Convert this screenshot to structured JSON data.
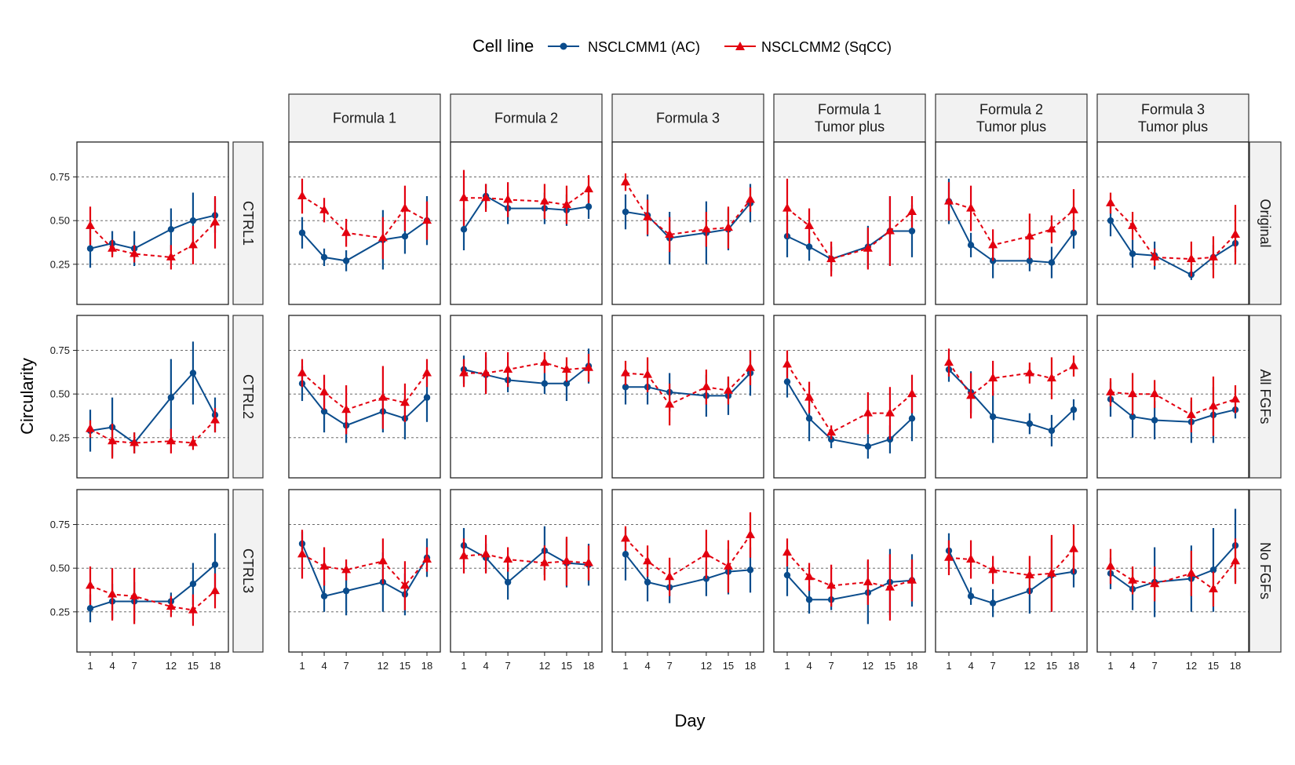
{
  "chart_data": {
    "type": "line",
    "xlabel": "Day",
    "ylabel": "Circularity",
    "x": [
      1,
      4,
      7,
      12,
      15,
      18
    ],
    "x_ticks": [
      "1",
      "4",
      "7",
      "12",
      "15",
      "18"
    ],
    "ylim": [
      0.02,
      0.95
    ],
    "y_ticks": [
      "0.25",
      "0.50",
      "0.75"
    ],
    "y_tick_values": [
      0.25,
      0.5,
      0.75
    ],
    "grid": "horizontal dashed at y ticks",
    "legend": {
      "title": "Cell line",
      "position": "top",
      "items": [
        {
          "label": "NSCLCMM1 (AC)",
          "color": "#0a4c8c",
          "marker": "circle",
          "line": "solid"
        },
        {
          "label": "NSCLCMM2 (SqCC)",
          "color": "#e3000f",
          "marker": "triangle",
          "line": "dashed"
        }
      ]
    },
    "column_strips": [
      "Formula 1",
      "Formula 2",
      "Formula 3",
      "Formula 1\nTumor plus",
      "Formula 2\nTumor plus",
      "Formula 3\nTumor plus"
    ],
    "row_strips": [
      "Original",
      "All FGFs",
      "No FGFs"
    ],
    "control_strips": [
      "CTRL1",
      "CTRL2",
      "CTRL3"
    ],
    "panels": [
      {
        "row": 0,
        "col": "ctrl",
        "strip": "CTRL1",
        "ac": [
          0.34,
          0.37,
          0.34,
          0.45,
          0.5,
          0.53
        ],
        "ac_err": [
          0.11,
          0.07,
          0.1,
          0.12,
          0.16,
          0.1
        ],
        "sq": [
          0.47,
          0.34,
          0.31,
          0.29,
          0.36,
          0.49
        ],
        "sq_err": [
          0.11,
          0.05,
          0.05,
          0.07,
          0.11,
          0.15
        ]
      },
      {
        "row": 0,
        "col": 0,
        "ac": [
          0.43,
          0.29,
          0.27,
          0.39,
          0.41,
          0.5
        ],
        "ac_err": [
          0.09,
          0.05,
          0.06,
          0.17,
          0.1,
          0.14
        ],
        "sq": [
          0.64,
          0.56,
          0.43,
          0.4,
          0.57,
          0.5
        ],
        "sq_err": [
          0.1,
          0.07,
          0.08,
          0.12,
          0.13,
          0.11
        ]
      },
      {
        "row": 0,
        "col": 1,
        "ac": [
          0.45,
          0.64,
          0.57,
          0.57,
          0.56,
          0.58
        ],
        "ac_err": [
          0.12,
          0.07,
          0.09,
          0.09,
          0.09,
          0.07
        ],
        "sq": [
          0.63,
          0.63,
          0.62,
          0.61,
          0.59,
          0.68
        ],
        "sq_err": [
          0.16,
          0.08,
          0.1,
          0.1,
          0.11,
          0.08
        ]
      },
      {
        "row": 0,
        "col": 2,
        "ac": [
          0.55,
          0.53,
          0.4,
          0.43,
          0.45,
          0.6
        ],
        "ac_err": [
          0.1,
          0.12,
          0.15,
          0.18,
          0.12,
          0.11
        ],
        "sq": [
          0.72,
          0.52,
          0.42,
          0.45,
          0.46,
          0.62
        ],
        "sq_err": [
          0.05,
          0.1,
          0.1,
          0.1,
          0.12,
          0.07
        ]
      },
      {
        "row": 0,
        "col": 3,
        "ac": [
          0.41,
          0.35,
          0.28,
          0.35,
          0.44,
          0.44
        ],
        "ac_err": [
          0.12,
          0.08,
          0.07,
          0.12,
          0.2,
          0.15
        ],
        "sq": [
          0.57,
          0.47,
          0.28,
          0.34,
          0.44,
          0.55
        ],
        "sq_err": [
          0.17,
          0.1,
          0.1,
          0.12,
          0.2,
          0.09
        ]
      },
      {
        "row": 0,
        "col": 4,
        "ac": [
          0.61,
          0.36,
          0.27,
          0.27,
          0.26,
          0.43
        ],
        "ac_err": [
          0.13,
          0.07,
          0.1,
          0.06,
          0.09,
          0.09
        ],
        "sq": [
          0.61,
          0.57,
          0.36,
          0.41,
          0.45,
          0.56
        ],
        "sq_err": [
          0.11,
          0.13,
          0.09,
          0.13,
          0.08,
          0.12
        ]
      },
      {
        "row": 0,
        "col": 5,
        "ac": [
          0.5,
          0.31,
          0.3,
          0.19,
          0.29,
          0.37
        ],
        "ac_err": [
          0.09,
          0.08,
          0.08,
          0.03,
          0.07,
          0.05
        ],
        "sq": [
          0.6,
          0.47,
          0.29,
          0.28,
          0.29,
          0.42
        ],
        "sq_err": [
          0.06,
          0.08,
          0.05,
          0.1,
          0.12,
          0.17
        ]
      },
      {
        "row": 1,
        "col": "ctrl",
        "strip": "CTRL2",
        "ac": [
          0.29,
          0.31,
          0.22,
          0.48,
          0.62,
          0.38
        ],
        "ac_err": [
          0.12,
          0.17,
          0.06,
          0.22,
          0.18,
          0.1
        ],
        "sq": [
          0.3,
          0.23,
          0.22,
          0.23,
          0.22,
          0.35
        ],
        "sq_err": [
          0.05,
          0.1,
          0.06,
          0.07,
          0.04,
          0.07
        ]
      },
      {
        "row": 1,
        "col": 0,
        "ac": [
          0.56,
          0.4,
          0.32,
          0.4,
          0.36,
          0.48
        ],
        "ac_err": [
          0.1,
          0.12,
          0.1,
          0.12,
          0.12,
          0.14
        ],
        "sq": [
          0.62,
          0.51,
          0.41,
          0.48,
          0.45,
          0.62
        ],
        "sq_err": [
          0.08,
          0.1,
          0.14,
          0.18,
          0.11,
          0.08
        ]
      },
      {
        "row": 1,
        "col": 1,
        "ac": [
          0.64,
          0.61,
          0.58,
          0.56,
          0.56,
          0.66
        ],
        "ac_err": [
          0.08,
          0.1,
          0.07,
          0.06,
          0.1,
          0.1
        ],
        "sq": [
          0.62,
          0.62,
          0.64,
          0.68,
          0.64,
          0.65
        ],
        "sq_err": [
          0.08,
          0.12,
          0.1,
          0.06,
          0.07,
          0.08
        ]
      },
      {
        "row": 1,
        "col": 2,
        "ac": [
          0.54,
          0.54,
          0.51,
          0.49,
          0.49,
          0.62
        ],
        "ac_err": [
          0.1,
          0.1,
          0.11,
          0.12,
          0.11,
          0.13
        ],
        "sq": [
          0.62,
          0.61,
          0.44,
          0.54,
          0.52,
          0.65
        ],
        "sq_err": [
          0.07,
          0.1,
          0.12,
          0.1,
          0.08,
          0.1
        ]
      },
      {
        "row": 1,
        "col": 3,
        "ac": [
          0.57,
          0.36,
          0.24,
          0.2,
          0.24,
          0.36
        ],
        "ac_err": [
          0.09,
          0.13,
          0.05,
          0.07,
          0.08,
          0.13
        ],
        "sq": [
          0.67,
          0.48,
          0.28,
          0.39,
          0.39,
          0.5
        ],
        "sq_err": [
          0.08,
          0.09,
          0.04,
          0.12,
          0.15,
          0.11
        ]
      },
      {
        "row": 1,
        "col": 4,
        "ac": [
          0.64,
          0.51,
          0.37,
          0.33,
          0.29,
          0.41
        ],
        "ac_err": [
          0.07,
          0.12,
          0.15,
          0.06,
          0.09,
          0.06
        ],
        "sq": [
          0.68,
          0.49,
          0.59,
          0.62,
          0.59,
          0.66
        ],
        "sq_err": [
          0.08,
          0.13,
          0.1,
          0.06,
          0.12,
          0.06
        ]
      },
      {
        "row": 1,
        "col": 5,
        "ac": [
          0.47,
          0.37,
          0.35,
          0.34,
          0.38,
          0.41
        ],
        "ac_err": [
          0.1,
          0.12,
          0.11,
          0.12,
          0.16,
          0.05
        ],
        "sq": [
          0.51,
          0.5,
          0.5,
          0.38,
          0.43,
          0.47
        ],
        "sq_err": [
          0.08,
          0.12,
          0.08,
          0.1,
          0.17,
          0.08
        ]
      },
      {
        "row": 2,
        "col": "ctrl",
        "strip": "CTRL3",
        "ac": [
          0.27,
          0.31,
          0.31,
          0.31,
          0.41,
          0.52
        ],
        "ac_err": [
          0.08,
          0.1,
          0.11,
          0.05,
          0.12,
          0.18
        ],
        "sq": [
          0.4,
          0.35,
          0.34,
          0.28,
          0.26,
          0.37
        ],
        "sq_err": [
          0.11,
          0.15,
          0.16,
          0.06,
          0.09,
          0.1
        ]
      },
      {
        "row": 2,
        "col": 0,
        "ac": [
          0.64,
          0.34,
          0.37,
          0.42,
          0.35,
          0.56
        ],
        "ac_err": [
          0.07,
          0.09,
          0.14,
          0.17,
          0.12,
          0.11
        ],
        "sq": [
          0.58,
          0.51,
          0.49,
          0.54,
          0.4,
          0.55
        ],
        "sq_err": [
          0.14,
          0.11,
          0.06,
          0.13,
          0.14,
          0.07
        ]
      },
      {
        "row": 2,
        "col": 1,
        "ac": [
          0.63,
          0.56,
          0.42,
          0.6,
          0.53,
          0.52
        ],
        "ac_err": [
          0.1,
          0.08,
          0.1,
          0.14,
          0.14,
          0.12
        ],
        "sq": [
          0.57,
          0.58,
          0.55,
          0.53,
          0.54,
          0.53
        ],
        "sq_err": [
          0.1,
          0.11,
          0.07,
          0.1,
          0.14,
          0.1
        ]
      },
      {
        "row": 2,
        "col": 2,
        "ac": [
          0.58,
          0.42,
          0.39,
          0.44,
          0.48,
          0.49
        ],
        "ac_err": [
          0.15,
          0.11,
          0.09,
          0.1,
          0.13,
          0.13
        ],
        "sq": [
          0.67,
          0.54,
          0.45,
          0.58,
          0.51,
          0.69
        ],
        "sq_err": [
          0.07,
          0.09,
          0.11,
          0.14,
          0.15,
          0.13
        ]
      },
      {
        "row": 2,
        "col": 3,
        "ac": [
          0.46,
          0.32,
          0.32,
          0.36,
          0.42,
          0.43
        ],
        "ac_err": [
          0.12,
          0.08,
          0.06,
          0.18,
          0.19,
          0.15
        ],
        "sq": [
          0.59,
          0.45,
          0.4,
          0.42,
          0.39,
          0.43
        ],
        "sq_err": [
          0.08,
          0.08,
          0.12,
          0.13,
          0.19,
          0.12
        ]
      },
      {
        "row": 2,
        "col": 4,
        "ac": [
          0.6,
          0.34,
          0.3,
          0.37,
          0.46,
          0.48
        ],
        "ac_err": [
          0.1,
          0.05,
          0.08,
          0.13,
          0.21,
          0.09
        ],
        "sq": [
          0.56,
          0.55,
          0.49,
          0.46,
          0.47,
          0.61
        ],
        "sq_err": [
          0.1,
          0.11,
          0.08,
          0.11,
          0.22,
          0.14
        ]
      },
      {
        "row": 2,
        "col": 5,
        "ac": [
          0.47,
          0.38,
          0.42,
          0.44,
          0.49,
          0.63
        ],
        "ac_err": [
          0.09,
          0.12,
          0.2,
          0.19,
          0.24,
          0.21
        ],
        "sq": [
          0.51,
          0.43,
          0.41,
          0.47,
          0.38,
          0.54
        ],
        "sq_err": [
          0.1,
          0.08,
          0.1,
          0.13,
          0.1,
          0.13
        ]
      }
    ]
  }
}
